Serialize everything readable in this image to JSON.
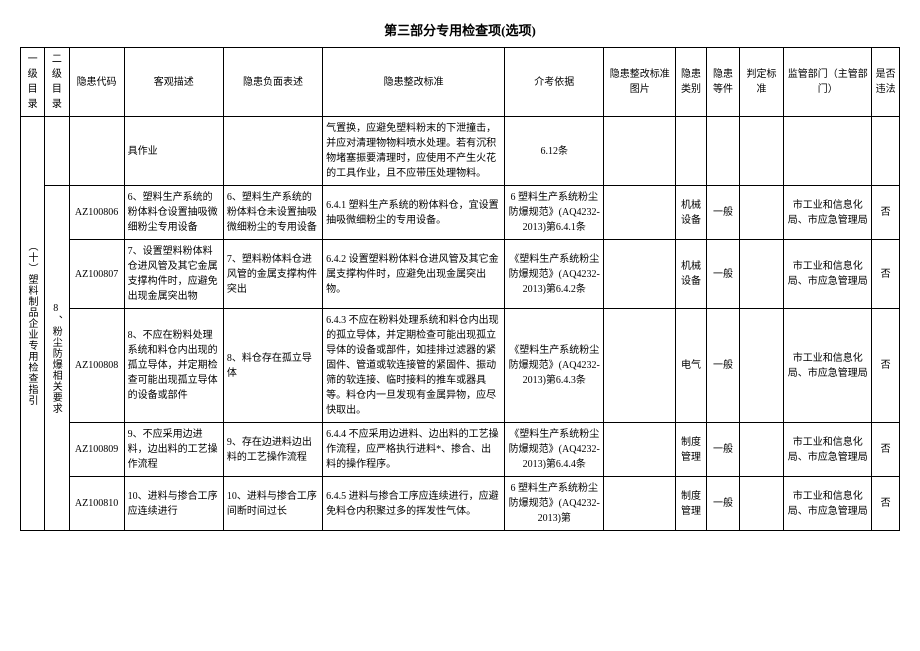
{
  "title": "第三部分专用检查项(选项)",
  "headers": {
    "l1": "一级目录",
    "l2": "二级目录",
    "code": "隐患代码",
    "obj": "客观描述",
    "neg": "隐患负面表述",
    "std": "隐患整改标准",
    "ref": "介考依据",
    "img": "隐患整改标准图片",
    "cat": "隐患类别",
    "lvl": "隐患等件",
    "crit": "判定标准",
    "dept": "监管部门（主管部门）",
    "ill": "是否违法"
  },
  "l1_label": "（十）塑料制品企业专用检查指引",
  "l2_label": "8、粉尘防爆相关要求",
  "rows": [
    {
      "code": "",
      "obj": "具作业",
      "neg": "",
      "std": "气置换，应避免塑料粉末的下泄撞击，并应对清理物物料喷水处理。若有沉积物堵塞振要清理时，应使用不产生火花的工具作业，且不应带压处理物料。",
      "ref": "6.12条",
      "img": "",
      "cat": "",
      "lvl": "",
      "crit": "",
      "dept": "",
      "ill": ""
    },
    {
      "code": "AZ100806",
      "obj": "6、塑料生产系统的粉体料仓设置抽吸微细粉尘专用设备",
      "neg": "6、塑料生产系统的粉体料仓未设置抽吸微细粉尘的专用设备",
      "std": "6.4.1 塑料生产系统的粉体料仓，宜设置抽吸微细粉尘的专用设备。",
      "ref": "6 塑料生产系统粉尘防爆规范》(AQ4232-2013)第6.4.1条",
      "img": "",
      "cat": "机械设备",
      "lvl": "一般",
      "crit": "",
      "dept": "市工业和信息化局、市应急管理局",
      "ill": "否"
    },
    {
      "code": "AZ100807",
      "obj": "7、设置塑料粉体料仓进风管及其它金属支撑构件时，应避免出现金属突出物",
      "neg": "7、塑料粉体料仓进风管的金属支撑构件突出",
      "std": "6.4.2 设置塑料粉体料仓进风管及其它金属支撑构件时，应避免出现金属突出物。",
      "ref": "《塑料生产系统粉尘防爆规范》(AQ4232-2013)第6.4.2条",
      "img": "",
      "cat": "机械设备",
      "lvl": "一般",
      "crit": "",
      "dept": "市工业和信息化局、市应急管理局",
      "ill": "否"
    },
    {
      "code": "AZ100808",
      "obj": "8、不应在粉料处理系统和料仓内出现的孤立导体，并定期检查可能出现孤立导体的设备或部件",
      "neg": "8、料仓存在孤立导体",
      "std": "6.4.3 不应在粉料处理系统和料仓内出现的孤立导体，并定期检查可能出现孤立导体的设备或部件，如挂排过滤器的紧固件、管道或软连接管的紧固件、振动筛的软连接、临时接料的推车或器具等。料仓内一旦发现有金属异物，应尽快取出。",
      "ref": "《塑料生产系统粉尘防爆规范》(AQ4232-2013)第6.4.3条",
      "img": "",
      "cat": "电气",
      "lvl": "一般",
      "crit": "",
      "dept": "市工业和信息化局、市应急管理局",
      "ill": "否"
    },
    {
      "code": "AZ100809",
      "obj": "9、不应采用边进料，边出料的工艺操作流程",
      "neg": "9、存在边进料边出料的工艺操作流程",
      "std": "6.4.4 不应采用边进料、边出料的工艺操作流程，应严格执行进料*、掺合、出料的操作程序。",
      "ref": "《塑料生产系统粉尘防爆规范》(AQ4232-2013)第6.4.4条",
      "img": "",
      "cat": "制度管理",
      "lvl": "一般",
      "crit": "",
      "dept": "市工业和信息化局、市应急管理局",
      "ill": "否"
    },
    {
      "code": "AZ100810",
      "obj": "10、进料与掺合工序应连续进行",
      "neg": "10、进料与掺合工序间断时间过长",
      "std": "6.4.5 进料与掺合工序应连续进行，应避免料仓内积聚过多的挥发性气体。",
      "ref": "6 塑料生产系统粉尘防爆规范》(AQ4232-2013)第",
      "img": "",
      "cat": "制度管理",
      "lvl": "一般",
      "crit": "",
      "dept": "市工业和信息化局、市应急管理局",
      "ill": "否"
    }
  ]
}
